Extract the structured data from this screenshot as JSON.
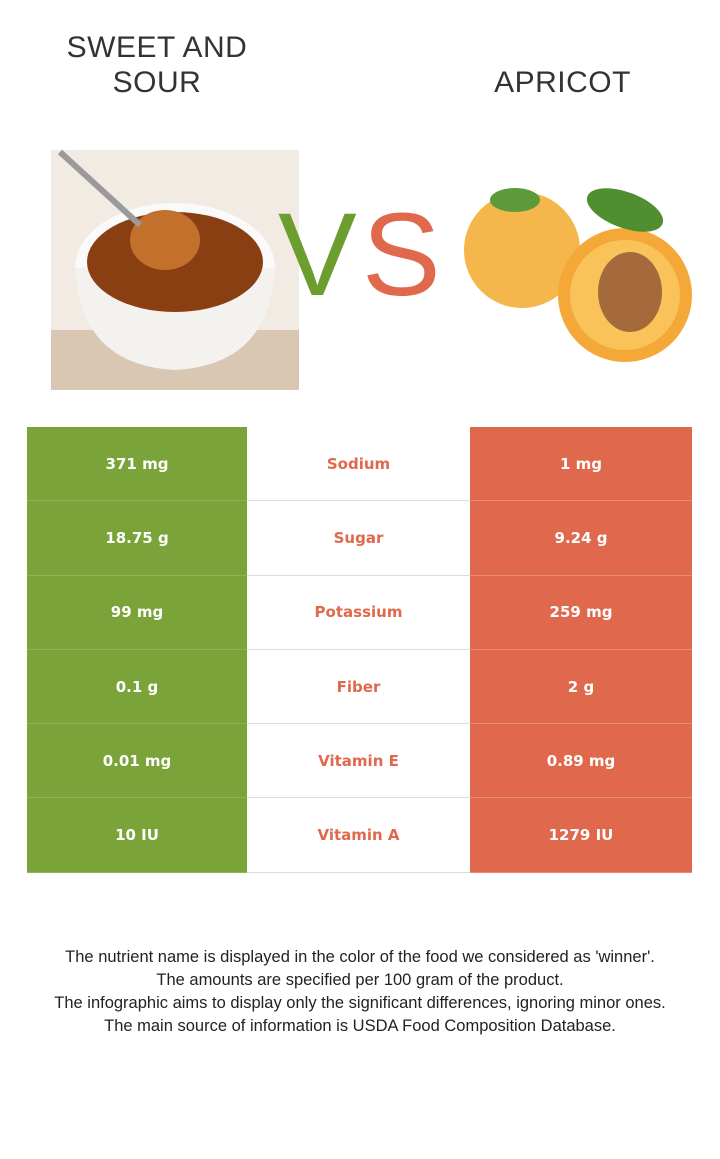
{
  "header": {
    "left": "SWEET AND SOUR",
    "right": "APRICOT",
    "vs": [
      "V",
      "S"
    ]
  },
  "table": {
    "rows": [
      [
        "371 mg",
        "Sodium",
        "1 mg"
      ],
      [
        "18.75 g",
        "Sugar",
        "9.24 g"
      ],
      [
        "99 mg",
        "Potassium",
        "259 mg"
      ],
      [
        "0.1 g",
        "Fiber",
        "2 g"
      ],
      [
        "0.01 mg",
        "Vitamin E",
        "0.89 mg"
      ],
      [
        "10 IU",
        "Vitamin A",
        "1279 IU"
      ]
    ]
  },
  "footnote": [
    "The nutrient name is displayed in the color of the food we considered as 'winner'.",
    "The amounts are specified per 100 gram of the product.",
    "The infographic aims to display only the significant differences, ignoring minor ones.",
    "The main source of information is USDA Food Composition Database."
  ]
}
